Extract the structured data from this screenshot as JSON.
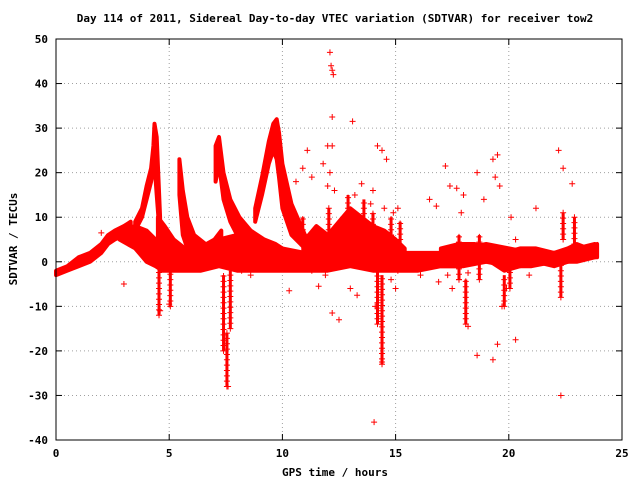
{
  "chart_data": {
    "type": "scatter",
    "title": "Day 114 of 2011, Sidereal Day-to-day VTEC variation (SDTVAR) for receiver tow2",
    "xlabel": "GPS time / hours",
    "ylabel": "SDTVAR / TECUs",
    "xlim": [
      0,
      25
    ],
    "ylim": [
      -40,
      50
    ],
    "x_ticks": [
      0,
      5,
      10,
      15,
      20,
      25
    ],
    "y_ticks": [
      -40,
      -30,
      -20,
      -10,
      0,
      10,
      20,
      30,
      40,
      50
    ],
    "grid": true,
    "marker": "plus",
    "color": "#ff0000",
    "series": [
      {
        "name": "",
        "bands": [
          {
            "x": [
              0.0,
              0.5,
              1.0,
              1.5,
              2.0,
              2.3,
              2.6,
              3.0,
              3.3
            ],
            "lo": [
              -3,
              -2,
              -1,
              0,
              2,
              4,
              5,
              6,
              6
            ],
            "hi": [
              -2,
              -1,
              1,
              2,
              4,
              6,
              7,
              8,
              9
            ]
          },
          {
            "x": [
              2.8,
              3.5,
              4.0,
              4.4,
              4.7,
              5.0,
              5.6,
              6.4,
              7.2,
              8.0,
              9.0,
              10.0,
              11.0,
              12.0,
              13.0,
              14.0,
              15.0,
              16.0,
              17.0,
              18.0,
              19.0,
              20.0,
              21.0,
              22.0,
              23.0,
              23.8
            ],
            "lo": [
              5,
              3,
              0,
              -1,
              -2,
              -2,
              -2,
              -2,
              -1,
              -2,
              -2,
              -2,
              -2,
              -2,
              -1,
              -2,
              -2,
              -2,
              -1,
              -1,
              0,
              -1,
              -1,
              0,
              0,
              1
            ],
            "hi": [
              7,
              8,
              7,
              5,
              3,
              2,
              2,
              3,
              5,
              6,
              5,
              3,
              2,
              2,
              3,
              2,
              2,
              2,
              2,
              3,
              4,
              3,
              2,
              2,
              3,
              4
            ]
          },
          {
            "x": [
              3.5,
              3.8,
              4.0,
              4.2,
              4.3,
              4.35,
              4.45,
              4.6
            ],
            "lo": [
              7,
              10,
              14,
              18,
              21,
              22,
              15,
              5
            ],
            "hi": [
              9,
              12,
              17,
              21,
              26,
              31,
              28,
              10
            ]
          },
          {
            "x": [
              4.5,
              4.8,
              5.2,
              5.7,
              6.3,
              7.0,
              7.3
            ],
            "lo": [
              5,
              3,
              1,
              0,
              0,
              1,
              2
            ],
            "hi": [
              10,
              8,
              5,
              3,
              3,
              5,
              7
            ]
          },
          {
            "x": [
              5.45,
              5.6,
              5.8,
              6.1,
              6.6,
              7.1
            ],
            "lo": [
              15,
              6,
              3,
              1,
              0,
              0
            ],
            "hi": [
              23,
              16,
              10,
              6,
              4,
              3
            ]
          },
          {
            "x": [
              7.05,
              7.2,
              7.4,
              7.7,
              8.1,
              8.6,
              9.2,
              9.7,
              10.0
            ],
            "lo": [
              18,
              22,
              14,
              9,
              5,
              3,
              2,
              1,
              0
            ],
            "hi": [
              26,
              28,
              20,
              14,
              10,
              7,
              5,
              4,
              3
            ]
          },
          {
            "x": [
              8.8,
              9.1,
              9.4,
              9.6,
              9.75,
              9.85,
              10.0,
              10.4,
              11.0,
              11.6,
              12.0
            ],
            "lo": [
              9,
              15,
              22,
              25,
              23,
              19,
              12,
              6,
              3,
              1,
              0
            ],
            "hi": [
              12,
              19,
              27,
              31,
              32,
              29,
              22,
              13,
              6,
              3,
              2
            ]
          },
          {
            "x": [
              11.0,
              11.5,
              12.0,
              12.5,
              13.0,
              13.5,
              14.0,
              14.5,
              15.0,
              15.4
            ],
            "lo": [
              -1,
              0,
              -1,
              -1,
              0,
              -1,
              -1,
              -1,
              -1,
              -1
            ],
            "hi": [
              5,
              8,
              6,
              9,
              12,
              10,
              8,
              7,
              5,
              3
            ]
          },
          {
            "x": [
              17.0,
              17.8,
              18.5,
              19.2,
              19.8,
              20.5,
              21.2,
              22.0,
              22.6,
              23.0,
              23.5,
              23.9
            ],
            "lo": [
              -1,
              -1,
              0,
              0,
              -2,
              -1,
              0,
              -1,
              0,
              1,
              1,
              1
            ],
            "hi": [
              3,
              4,
              4,
              3,
              2,
              3,
              3,
              2,
              3,
              4,
              3,
              4
            ]
          }
        ],
        "spikes": [
          {
            "x": 4.55,
            "lo": -12,
            "hi": 0
          },
          {
            "x": 5.05,
            "lo": -10,
            "hi": -1
          },
          {
            "x": 7.4,
            "lo": -20,
            "hi": -3
          },
          {
            "x": 7.55,
            "lo": -28,
            "hi": -16
          },
          {
            "x": 7.7,
            "lo": -15,
            "hi": -2
          },
          {
            "x": 14.4,
            "lo": -23,
            "hi": -3
          },
          {
            "x": 14.2,
            "lo": -14,
            "hi": -2
          },
          {
            "x": 18.1,
            "lo": -14,
            "hi": -4
          },
          {
            "x": 19.8,
            "lo": -10,
            "hi": -3
          },
          {
            "x": 20.05,
            "lo": -6,
            "hi": 0
          },
          {
            "x": 22.3,
            "lo": -8,
            "hi": 1
          },
          {
            "x": 22.4,
            "lo": 5,
            "hi": 11
          },
          {
            "x": 22.9,
            "lo": 4,
            "hi": 10
          },
          {
            "x": 12.05,
            "lo": 0,
            "hi": 12
          },
          {
            "x": 12.9,
            "lo": 0,
            "hi": 15
          },
          {
            "x": 13.6,
            "lo": 0,
            "hi": 14
          },
          {
            "x": 14.0,
            "lo": 0,
            "hi": 11
          },
          {
            "x": 14.8,
            "lo": 0,
            "hi": 10
          },
          {
            "x": 15.2,
            "lo": -1,
            "hi": 9
          },
          {
            "x": 16.0,
            "lo": -1,
            "hi": 2
          },
          {
            "x": 17.8,
            "lo": -4,
            "hi": 6
          },
          {
            "x": 18.7,
            "lo": -4,
            "hi": 6
          },
          {
            "x": 10.9,
            "lo": 0,
            "hi": 10
          }
        ],
        "outliers": [
          [
            3.0,
            -5
          ],
          [
            4.6,
            -11
          ],
          [
            5.0,
            -9.5
          ],
          [
            7.6,
            -28
          ],
          [
            10.3,
            -6.5
          ],
          [
            11.3,
            -2
          ],
          [
            11.6,
            -5.5
          ],
          [
            11.9,
            -3
          ],
          [
            12.1,
            47
          ],
          [
            12.15,
            44
          ],
          [
            12.2,
            43
          ],
          [
            12.25,
            42
          ],
          [
            12.2,
            32.5
          ],
          [
            13.1,
            31.5
          ],
          [
            12.0,
            26
          ],
          [
            12.2,
            26
          ],
          [
            11.8,
            22
          ],
          [
            12.1,
            20
          ],
          [
            14.2,
            26
          ],
          [
            14.4,
            25
          ],
          [
            14.6,
            23
          ],
          [
            11.1,
            25
          ],
          [
            10.9,
            21
          ],
          [
            10.6,
            18
          ],
          [
            11.3,
            19
          ],
          [
            12.0,
            17
          ],
          [
            12.3,
            16
          ],
          [
            13.5,
            17.5
          ],
          [
            14.0,
            16
          ],
          [
            13.2,
            15
          ],
          [
            13.9,
            13
          ],
          [
            14.5,
            12
          ],
          [
            14.9,
            11
          ],
          [
            15.1,
            12
          ],
          [
            16.5,
            14
          ],
          [
            16.8,
            12.5
          ],
          [
            17.2,
            21.5
          ],
          [
            17.4,
            17
          ],
          [
            17.7,
            16.5
          ],
          [
            18.0,
            15
          ],
          [
            17.9,
            11
          ],
          [
            18.6,
            20
          ],
          [
            18.9,
            14
          ],
          [
            19.4,
            19
          ],
          [
            19.6,
            17
          ],
          [
            19.3,
            23
          ],
          [
            19.5,
            24
          ],
          [
            20.1,
            10
          ],
          [
            20.3,
            5
          ],
          [
            22.2,
            25
          ],
          [
            22.4,
            21
          ],
          [
            22.8,
            17.5
          ],
          [
            21.2,
            12
          ],
          [
            20.9,
            -3
          ],
          [
            19.9,
            -6
          ],
          [
            19.7,
            -10
          ],
          [
            18.2,
            -14.5
          ],
          [
            18.6,
            -21
          ],
          [
            19.3,
            -22
          ],
          [
            19.5,
            -18.5
          ],
          [
            20.3,
            -17.5
          ],
          [
            22.3,
            -30
          ],
          [
            14.05,
            -36
          ],
          [
            14.4,
            -22.5
          ],
          [
            13.3,
            -7.5
          ],
          [
            12.5,
            -13
          ],
          [
            12.2,
            -11.5
          ],
          [
            13.0,
            -6
          ],
          [
            14.1,
            -10
          ],
          [
            14.8,
            -4
          ],
          [
            15.1,
            -2
          ],
          [
            15.0,
            -6
          ],
          [
            16.1,
            -3
          ],
          [
            16.9,
            -4.5
          ],
          [
            17.5,
            -6
          ],
          [
            17.8,
            -4
          ],
          [
            18.2,
            -2.5
          ],
          [
            17.3,
            -3
          ],
          [
            9.6,
            26
          ],
          [
            9.3,
            20
          ],
          [
            8.6,
            -3
          ],
          [
            8.2,
            -2
          ],
          [
            6.4,
            -1
          ],
          [
            2.0,
            6.5
          ]
        ]
      }
    ]
  }
}
